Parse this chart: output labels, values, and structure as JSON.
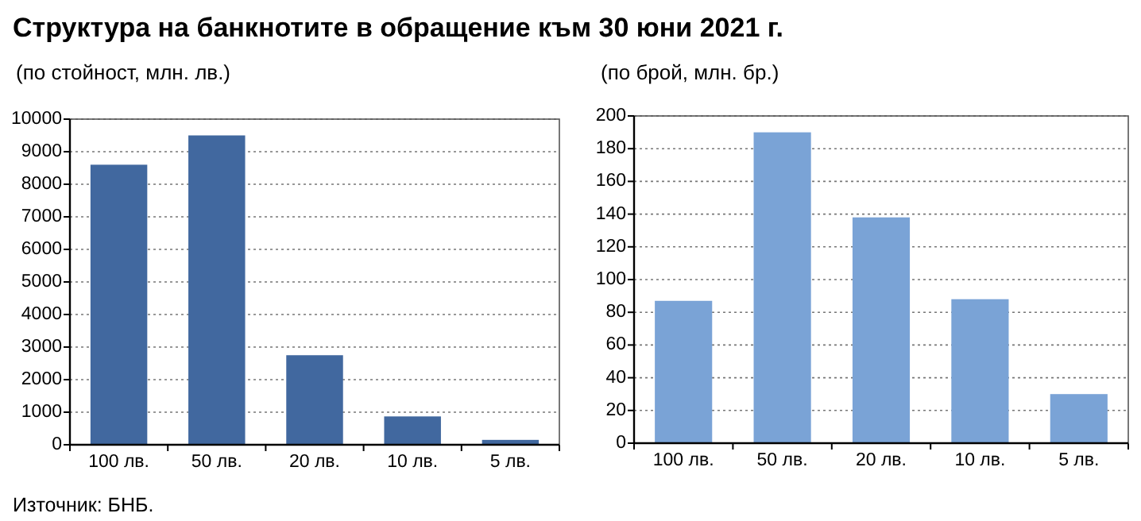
{
  "chart_data": [
    {
      "type": "bar",
      "title": "Структура на банкнотите в обращение към 30 юни 2021 г.",
      "subtitle": "(по стойност, млн. лв.)",
      "categories": [
        "100 лв.",
        "50 лв.",
        "20 лв.",
        "10 лв.",
        "5 лв."
      ],
      "values": [
        8600,
        9500,
        2750,
        870,
        150
      ],
      "color": "#41689f",
      "ylim": [
        0,
        10000
      ],
      "yticks": [
        0,
        1000,
        2000,
        3000,
        4000,
        5000,
        6000,
        7000,
        8000,
        9000,
        10000
      ],
      "grid": "y",
      "annotations": [
        "Източник: БНБ."
      ]
    },
    {
      "type": "bar",
      "subtitle": "(по брой, млн. бр.)",
      "categories": [
        "100 лв.",
        "50 лв.",
        "20 лв.",
        "10 лв.",
        "5 лв."
      ],
      "values": [
        87,
        190,
        138,
        88,
        30
      ],
      "color": "#7aa3d6",
      "ylim": [
        0,
        200
      ],
      "yticks": [
        0,
        20,
        40,
        60,
        80,
        100,
        120,
        140,
        160,
        180,
        200
      ],
      "grid": "y"
    }
  ]
}
